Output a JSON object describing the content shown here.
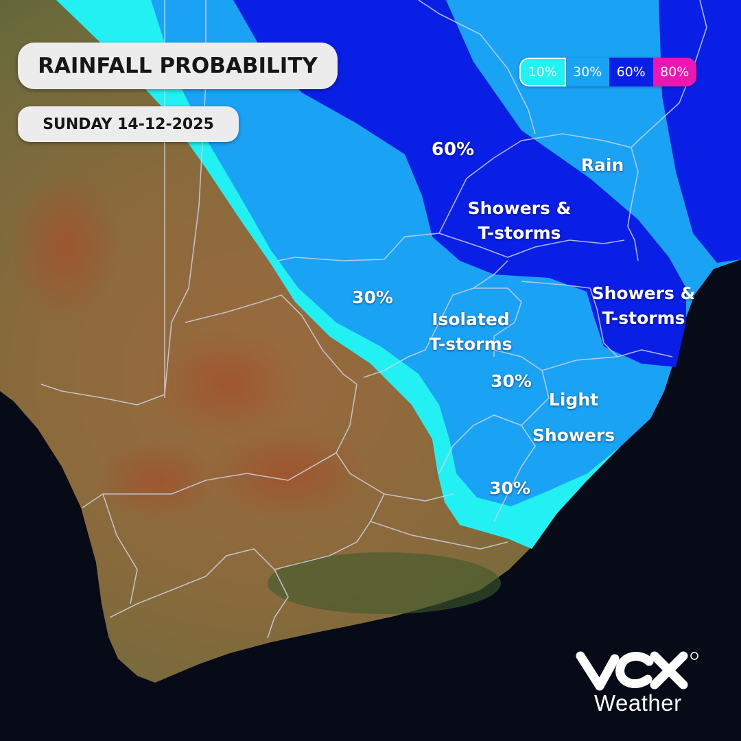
{
  "header": {
    "title": "RAINFALL PROBABILITY",
    "date": "SUNDAY 14-12-2025"
  },
  "legend": [
    {
      "label": "10%",
      "color": "#22f0f2",
      "text_color": "#ffffff"
    },
    {
      "label": "30%",
      "color": "#1aa3f5",
      "text_color": "#ffffff"
    },
    {
      "label": "60%",
      "color": "#0a1fe6",
      "text_color": "#ffffff"
    },
    {
      "label": "80%",
      "color": "#ea17b3",
      "text_color": "#ffffff"
    }
  ],
  "map_labels": {
    "p60": "60%",
    "rain": "Rain",
    "showers_north": "Showers &\nT-storms",
    "p30_west": "30%",
    "isolated": "Isolated\nT-storms",
    "showers_east": "Showers &\nT-storms",
    "p30_center": "30%",
    "light_showers": "Light\nShowers",
    "p30_south": "30%"
  },
  "colors": {
    "ocean": "#070b17",
    "land": "#8a6a3c",
    "zone_10": "#22f0f2",
    "zone_30": "#1aa3f5",
    "zone_60": "#0a1fe6",
    "border": "#c9d2e0"
  },
  "brand": {
    "logo_icon": "vox-logo-icon",
    "wordmark": "Weather"
  }
}
